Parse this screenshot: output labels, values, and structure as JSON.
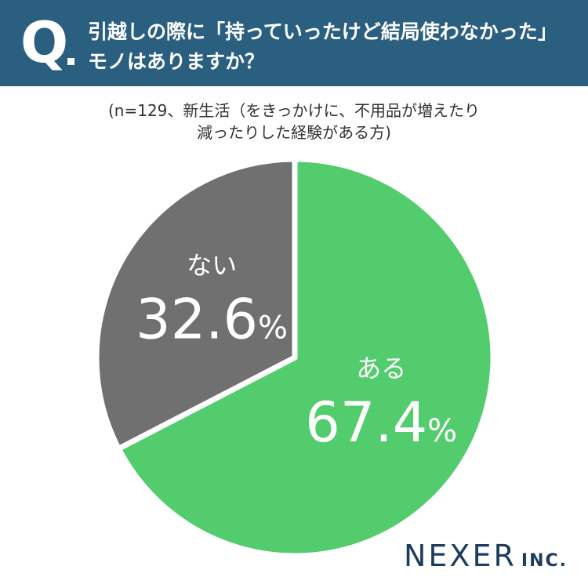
{
  "header": {
    "q_mark": "Q",
    "question": "引越しの際に「持っていったけど結局使わなかった」モノはありますか？"
  },
  "note": "(n=129、新生活（をきっかけに、不用品が増えたり\n減ったりした経験がある方)",
  "brand": {
    "name": "NEXER",
    "suffix": "INC."
  },
  "colors": {
    "header_bg": "#2b5f80",
    "aru": "#53cc6e",
    "nai": "#707070",
    "brand": "#1d3c5e"
  },
  "chart_data": {
    "type": "pie",
    "title": "",
    "start_angle_deg": 0,
    "direction": "clockwise",
    "slices": [
      {
        "label": "ある",
        "value": 67.4,
        "value_label": "67.4",
        "color": "#53cc6e"
      },
      {
        "label": "ない",
        "value": 32.6,
        "value_label": "32.6",
        "color": "#707070"
      }
    ],
    "unit": "%"
  }
}
